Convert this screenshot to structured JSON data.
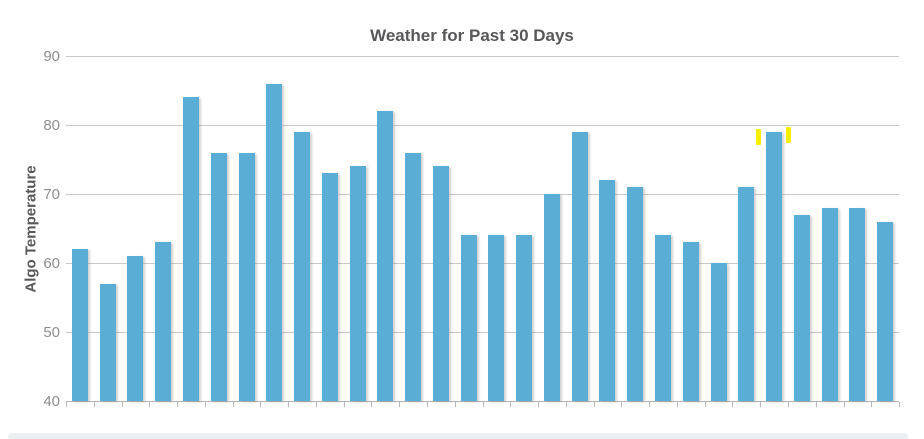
{
  "chart_data": {
    "type": "bar",
    "title": "Weather for Past 30 Days",
    "ylabel": "Algo Temperature",
    "xlabel": "",
    "values": [
      62,
      57,
      61,
      63,
      84,
      76,
      76,
      86,
      79,
      73,
      74,
      82,
      76,
      74,
      64,
      64,
      64,
      70,
      79,
      72,
      71,
      64,
      63,
      60,
      71,
      79,
      67,
      68,
      68,
      66
    ],
    "ylim": [
      40,
      90
    ],
    "yticks": [
      90,
      80,
      70,
      60,
      50,
      40
    ],
    "grid": true,
    "legend": false,
    "bar_color": "#5aaed6",
    "title_color": "#58585a",
    "tick_label_color": "#8e8e8e",
    "grid_color": "#c9c9c9",
    "highlight_color": "#f8ee00",
    "annotations": [
      {
        "type": "highlight-dash",
        "color": "#f8ee00",
        "bar_index": 25,
        "side": "left"
      },
      {
        "type": "highlight-dash",
        "color": "#f8ee00",
        "bar_index": 25,
        "side": "right"
      }
    ]
  }
}
